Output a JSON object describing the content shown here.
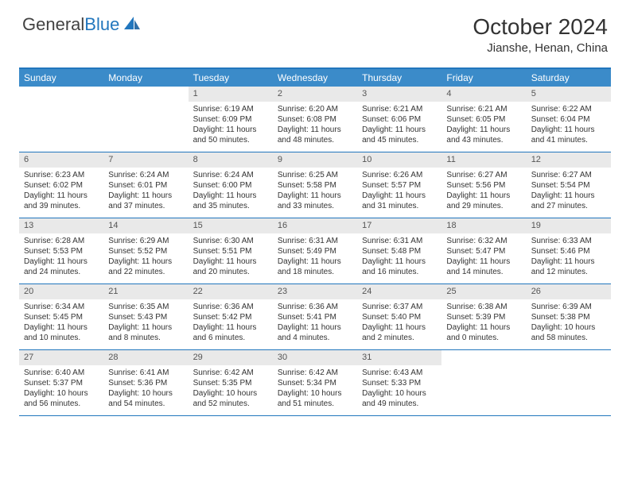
{
  "logo": {
    "part1": "General",
    "part2": "Blue"
  },
  "title": "October 2024",
  "location": "Jianshe, Henan, China",
  "colors": {
    "header_bg": "#3b8bc9",
    "border": "#2176bd",
    "daynum_bg": "#e9e9e9",
    "text": "#333333",
    "logo_blue": "#2176bd"
  },
  "day_headers": [
    "Sunday",
    "Monday",
    "Tuesday",
    "Wednesday",
    "Thursday",
    "Friday",
    "Saturday"
  ],
  "weeks": [
    [
      null,
      null,
      {
        "n": "1",
        "sr": "Sunrise: 6:19 AM",
        "ss": "Sunset: 6:09 PM",
        "dl": "Daylight: 11 hours and 50 minutes."
      },
      {
        "n": "2",
        "sr": "Sunrise: 6:20 AM",
        "ss": "Sunset: 6:08 PM",
        "dl": "Daylight: 11 hours and 48 minutes."
      },
      {
        "n": "3",
        "sr": "Sunrise: 6:21 AM",
        "ss": "Sunset: 6:06 PM",
        "dl": "Daylight: 11 hours and 45 minutes."
      },
      {
        "n": "4",
        "sr": "Sunrise: 6:21 AM",
        "ss": "Sunset: 6:05 PM",
        "dl": "Daylight: 11 hours and 43 minutes."
      },
      {
        "n": "5",
        "sr": "Sunrise: 6:22 AM",
        "ss": "Sunset: 6:04 PM",
        "dl": "Daylight: 11 hours and 41 minutes."
      }
    ],
    [
      {
        "n": "6",
        "sr": "Sunrise: 6:23 AM",
        "ss": "Sunset: 6:02 PM",
        "dl": "Daylight: 11 hours and 39 minutes."
      },
      {
        "n": "7",
        "sr": "Sunrise: 6:24 AM",
        "ss": "Sunset: 6:01 PM",
        "dl": "Daylight: 11 hours and 37 minutes."
      },
      {
        "n": "8",
        "sr": "Sunrise: 6:24 AM",
        "ss": "Sunset: 6:00 PM",
        "dl": "Daylight: 11 hours and 35 minutes."
      },
      {
        "n": "9",
        "sr": "Sunrise: 6:25 AM",
        "ss": "Sunset: 5:58 PM",
        "dl": "Daylight: 11 hours and 33 minutes."
      },
      {
        "n": "10",
        "sr": "Sunrise: 6:26 AM",
        "ss": "Sunset: 5:57 PM",
        "dl": "Daylight: 11 hours and 31 minutes."
      },
      {
        "n": "11",
        "sr": "Sunrise: 6:27 AM",
        "ss": "Sunset: 5:56 PM",
        "dl": "Daylight: 11 hours and 29 minutes."
      },
      {
        "n": "12",
        "sr": "Sunrise: 6:27 AM",
        "ss": "Sunset: 5:54 PM",
        "dl": "Daylight: 11 hours and 27 minutes."
      }
    ],
    [
      {
        "n": "13",
        "sr": "Sunrise: 6:28 AM",
        "ss": "Sunset: 5:53 PM",
        "dl": "Daylight: 11 hours and 24 minutes."
      },
      {
        "n": "14",
        "sr": "Sunrise: 6:29 AM",
        "ss": "Sunset: 5:52 PM",
        "dl": "Daylight: 11 hours and 22 minutes."
      },
      {
        "n": "15",
        "sr": "Sunrise: 6:30 AM",
        "ss": "Sunset: 5:51 PM",
        "dl": "Daylight: 11 hours and 20 minutes."
      },
      {
        "n": "16",
        "sr": "Sunrise: 6:31 AM",
        "ss": "Sunset: 5:49 PM",
        "dl": "Daylight: 11 hours and 18 minutes."
      },
      {
        "n": "17",
        "sr": "Sunrise: 6:31 AM",
        "ss": "Sunset: 5:48 PM",
        "dl": "Daylight: 11 hours and 16 minutes."
      },
      {
        "n": "18",
        "sr": "Sunrise: 6:32 AM",
        "ss": "Sunset: 5:47 PM",
        "dl": "Daylight: 11 hours and 14 minutes."
      },
      {
        "n": "19",
        "sr": "Sunrise: 6:33 AM",
        "ss": "Sunset: 5:46 PM",
        "dl": "Daylight: 11 hours and 12 minutes."
      }
    ],
    [
      {
        "n": "20",
        "sr": "Sunrise: 6:34 AM",
        "ss": "Sunset: 5:45 PM",
        "dl": "Daylight: 11 hours and 10 minutes."
      },
      {
        "n": "21",
        "sr": "Sunrise: 6:35 AM",
        "ss": "Sunset: 5:43 PM",
        "dl": "Daylight: 11 hours and 8 minutes."
      },
      {
        "n": "22",
        "sr": "Sunrise: 6:36 AM",
        "ss": "Sunset: 5:42 PM",
        "dl": "Daylight: 11 hours and 6 minutes."
      },
      {
        "n": "23",
        "sr": "Sunrise: 6:36 AM",
        "ss": "Sunset: 5:41 PM",
        "dl": "Daylight: 11 hours and 4 minutes."
      },
      {
        "n": "24",
        "sr": "Sunrise: 6:37 AM",
        "ss": "Sunset: 5:40 PM",
        "dl": "Daylight: 11 hours and 2 minutes."
      },
      {
        "n": "25",
        "sr": "Sunrise: 6:38 AM",
        "ss": "Sunset: 5:39 PM",
        "dl": "Daylight: 11 hours and 0 minutes."
      },
      {
        "n": "26",
        "sr": "Sunrise: 6:39 AM",
        "ss": "Sunset: 5:38 PM",
        "dl": "Daylight: 10 hours and 58 minutes."
      }
    ],
    [
      {
        "n": "27",
        "sr": "Sunrise: 6:40 AM",
        "ss": "Sunset: 5:37 PM",
        "dl": "Daylight: 10 hours and 56 minutes."
      },
      {
        "n": "28",
        "sr": "Sunrise: 6:41 AM",
        "ss": "Sunset: 5:36 PM",
        "dl": "Daylight: 10 hours and 54 minutes."
      },
      {
        "n": "29",
        "sr": "Sunrise: 6:42 AM",
        "ss": "Sunset: 5:35 PM",
        "dl": "Daylight: 10 hours and 52 minutes."
      },
      {
        "n": "30",
        "sr": "Sunrise: 6:42 AM",
        "ss": "Sunset: 5:34 PM",
        "dl": "Daylight: 10 hours and 51 minutes."
      },
      {
        "n": "31",
        "sr": "Sunrise: 6:43 AM",
        "ss": "Sunset: 5:33 PM",
        "dl": "Daylight: 10 hours and 49 minutes."
      },
      null,
      null
    ]
  ]
}
